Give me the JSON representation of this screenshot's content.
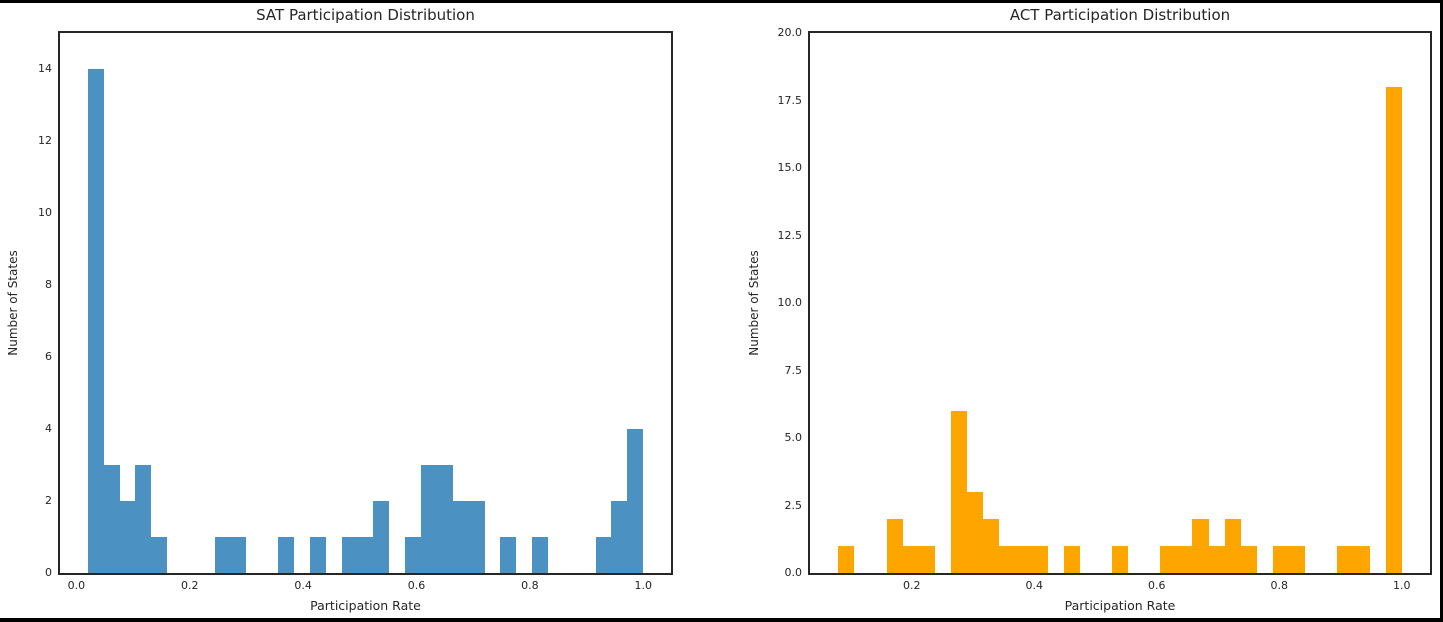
{
  "figure": {
    "background": "#ffffff",
    "edge_frame_color": "#000000",
    "spine_color": "#262626",
    "text_color": "#262626"
  },
  "chart_data": [
    {
      "id": "sat",
      "type": "bar",
      "subtype": "histogram",
      "title": "SAT Participation Distribution",
      "xlabel": "Participation Rate",
      "ylabel": "Number of States",
      "bar_color": "#4b92c3",
      "n_bins": 35,
      "bin_start": 0.02,
      "bin_width": 0.028,
      "counts": [
        14,
        3,
        2,
        3,
        1,
        0,
        0,
        0,
        1,
        1,
        0,
        0,
        1,
        0,
        1,
        0,
        1,
        1,
        2,
        0,
        1,
        3,
        3,
        2,
        2,
        0,
        1,
        0,
        1,
        0,
        0,
        0,
        1,
        2,
        4
      ],
      "total_states": 51,
      "xlim": [
        -0.029,
        1.049
      ],
      "ylim": [
        0,
        15
      ],
      "grid": false,
      "legend": "none",
      "xticks": [
        0.0,
        0.2,
        0.4,
        0.6,
        0.8,
        1.0
      ],
      "xtick_labels": [
        "0.0",
        "0.2",
        "0.4",
        "0.6",
        "0.8",
        "1.0"
      ],
      "yticks": [
        0,
        2,
        4,
        6,
        8,
        10,
        12,
        14
      ],
      "ytick_labels": [
        "0",
        "2",
        "4",
        "6",
        "8",
        "10",
        "12",
        "14"
      ]
    },
    {
      "id": "act",
      "type": "bar",
      "subtype": "histogram",
      "title": "ACT Participation Distribution",
      "xlabel": "Participation Rate",
      "ylabel": "Number of States",
      "bar_color": "#ffa500",
      "n_bins": 35,
      "bin_start": 0.08,
      "bin_width": 0.0262857,
      "counts": [
        1,
        0,
        0,
        2,
        1,
        1,
        0,
        6,
        3,
        2,
        1,
        1,
        1,
        0,
        1,
        0,
        0,
        1,
        0,
        0,
        1,
        1,
        2,
        1,
        2,
        1,
        0,
        1,
        1,
        0,
        0,
        1,
        1,
        0,
        18
      ],
      "total_states": 51,
      "xlim": [
        0.0339,
        1.0461
      ],
      "ylim": [
        0,
        20
      ],
      "grid": false,
      "legend": "none",
      "xticks": [
        0.2,
        0.4,
        0.6,
        0.8,
        1.0
      ],
      "xtick_labels": [
        "0.2",
        "0.4",
        "0.6",
        "0.8",
        "1.0"
      ],
      "yticks": [
        0,
        2.5,
        5,
        7.5,
        10,
        12.5,
        15,
        17.5,
        20
      ],
      "ytick_labels": [
        "0.0",
        "2.5",
        "5.0",
        "7.5",
        "10.0",
        "12.5",
        "15.0",
        "17.5",
        "20.0"
      ]
    }
  ]
}
